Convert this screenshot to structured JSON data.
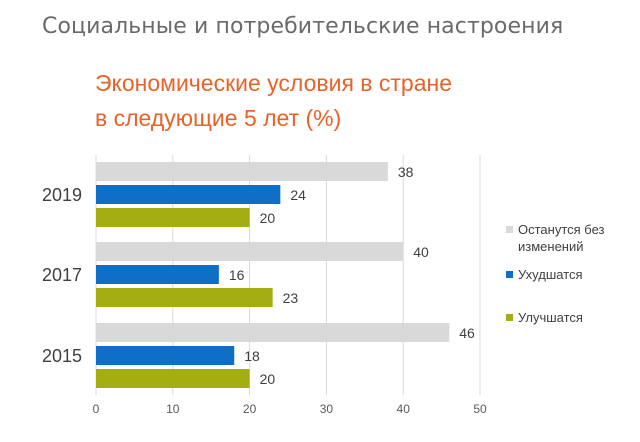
{
  "header": {
    "title": "Социальные и потребительские настроения"
  },
  "chart_title_lines": [
    "Экономические условия в стране",
    "в следующие 5 лет (%)"
  ],
  "colors": {
    "accent": "#e8622a",
    "grey": "#d9d9d9",
    "blue": "#0f6fc6",
    "green": "#a3ae12"
  },
  "chart_data": {
    "type": "bar",
    "orientation": "horizontal",
    "title": "Экономические условия в стране в следующие 5 лет (%)",
    "categories": [
      "2019",
      "2017",
      "2015"
    ],
    "series": [
      {
        "name": "Останутся без изменений",
        "color": "#d9d9d9",
        "values": [
          38,
          40,
          46
        ]
      },
      {
        "name": "Ухудшатся",
        "color": "#0f6fc6",
        "values": [
          24,
          16,
          18
        ]
      },
      {
        "name": "Улучшатся",
        "color": "#a3ae12",
        "values": [
          20,
          23,
          20
        ]
      }
    ],
    "xlim": [
      0,
      50
    ],
    "xticks": [
      0,
      10,
      20,
      30,
      40,
      50
    ],
    "grid": true,
    "legend": "right",
    "data_labels": true
  }
}
